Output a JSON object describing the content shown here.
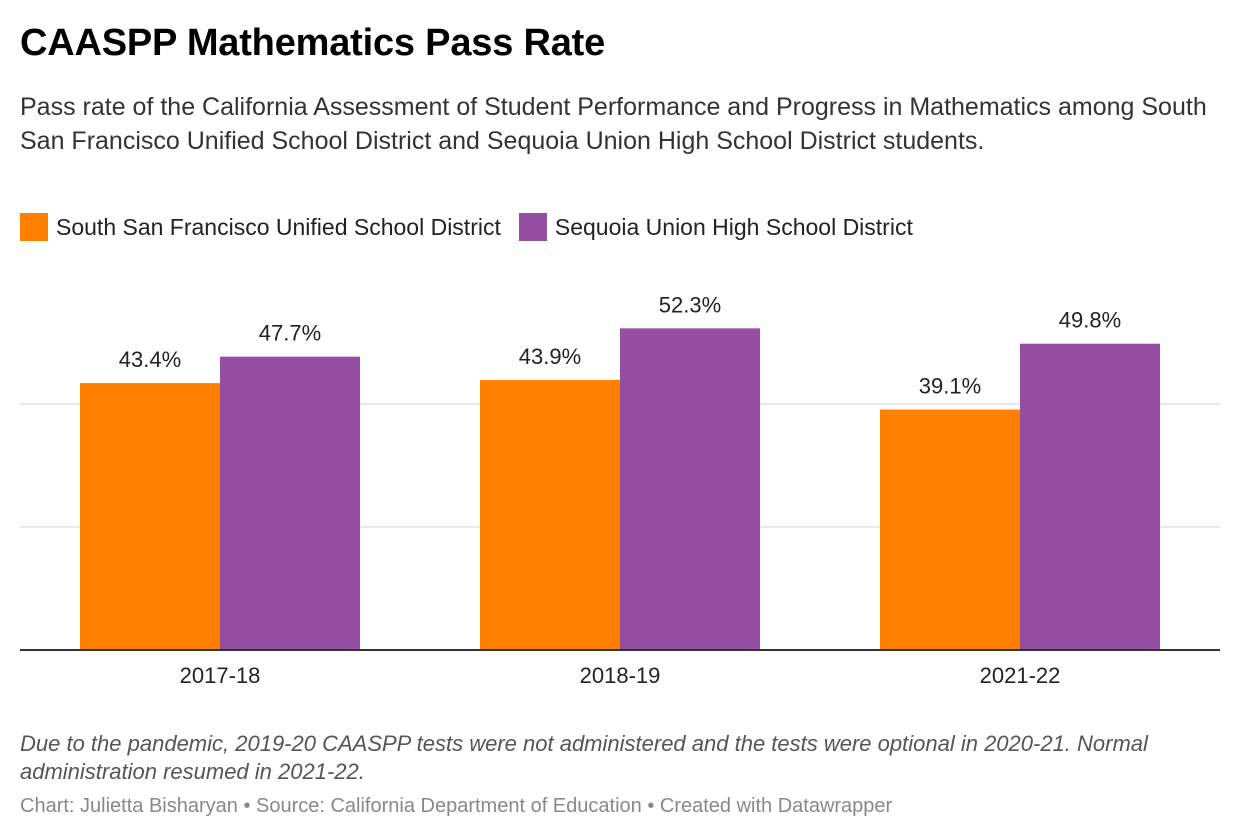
{
  "chart_data": {
    "type": "bar",
    "title": "CAASPP Mathematics Pass Rate",
    "subtitle": "Pass rate of the California Assessment of Student Performance and Progress in Mathematics among South San Francisco Unified School District and Sequoia Union High School District students.",
    "categories": [
      "2017-18",
      "2018-19",
      "2021-22"
    ],
    "series": [
      {
        "name": "South San Francisco Unified School District",
        "color": "#ff8000",
        "values": [
          43.4,
          43.9,
          39.1
        ],
        "labels": [
          "43.4%",
          "43.9%",
          "39.1%"
        ]
      },
      {
        "name": "Sequoia Union High School District",
        "color": "#964ea2",
        "values": [
          47.7,
          52.3,
          49.8
        ],
        "labels": [
          "47.7%",
          "52.3%",
          "49.8%"
        ]
      }
    ],
    "ylim": [
      0,
      60
    ],
    "gridlines": [
      20,
      40
    ],
    "grid": true,
    "legend": "top-left"
  },
  "footer": {
    "note": "Due to the pandemic, 2019-20 CAASPP tests were not administered and the tests were optional in 2020-21. Normal administration resumed in 2021-22.",
    "credit": "Chart: Julietta Bisharyan • Source: California Department of Education • Created with Datawrapper"
  }
}
